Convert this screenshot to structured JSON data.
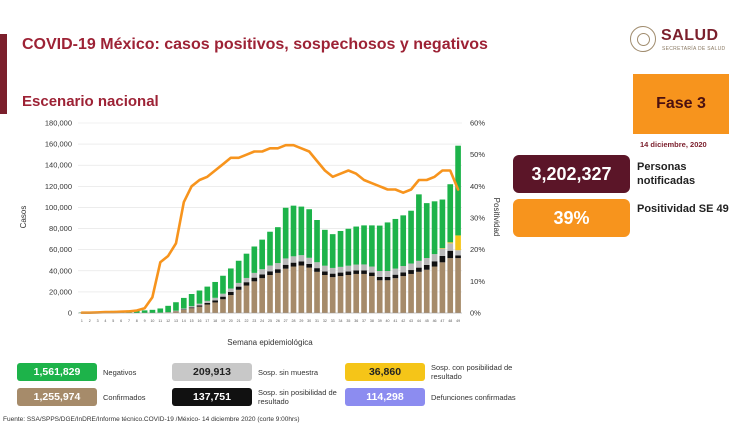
{
  "header": {
    "title": "COVID-19 México: casos positivos, sospechosos y negativos",
    "subtitle": "Escenario nacional",
    "logo_text": "SALUD",
    "logo_sub": "SECRETARÍA DE SALUD"
  },
  "right_panel": {
    "phase": "Fase 3",
    "date": "14 diciembre, 2020",
    "notified_value": "3,202,327",
    "notified_label": "Personas notificadas",
    "positivity_value": "39%",
    "positivity_label": "Positividad SE 49"
  },
  "legend": {
    "negativos_value": "1,561,829",
    "negativos_label": "Negativos",
    "confirmados_value": "1,255,974",
    "confirmados_label": "Confirmados",
    "sosp_sin_muestra_value": "209,913",
    "sosp_sin_muestra_label": "Sosp. sin muestra",
    "sosp_sin_posibilidad_value": "137,751",
    "sosp_sin_posibilidad_label": "Sosp. sin posibilidad de resultado",
    "sosp_con_posibilidad_value": "36,860",
    "sosp_con_posibilidad_label": "Sosp. con posibilidad de resultado",
    "defunciones_value": "114,298",
    "defunciones_label": "Defunciones confirmadas"
  },
  "source": "Fuente: SSA/SPPS/DGE/InDRE/Informe técnico.COVID-19 /México- 14 diciembre 2020 (corte 9:00hrs)",
  "colors": {
    "confirmados": "#a68b6a",
    "sosp_sin_posibilidad": "#111111",
    "sosp_sin_muestra": "#b9b9b9",
    "negativos": "#1db34a",
    "sosp_con_posibilidad": "#f5c518",
    "positividad": "#f7941d",
    "notified_box": "#5b1528",
    "positivity_box": "#f7941d"
  },
  "chart_data": {
    "type": "bar",
    "stacked": true,
    "xlabel": "Semana epidemiológica",
    "ylabel": "Casos",
    "y2label": "Positividad",
    "ylim": [
      0,
      180000
    ],
    "y2lim": [
      0,
      60
    ],
    "yticks": [
      "0",
      "20,000",
      "40,000",
      "60,000",
      "80,000",
      "100,000",
      "120,000",
      "140,000",
      "160,000",
      "180,000"
    ],
    "y2ticks": [
      "0%",
      "10%",
      "20%",
      "30%",
      "40%",
      "50%",
      "60%"
    ],
    "categories": [
      "1",
      "2",
      "3",
      "4",
      "5",
      "6",
      "7",
      "8",
      "9",
      "10",
      "11",
      "12",
      "13",
      "14",
      "15",
      "16",
      "17",
      "18",
      "19",
      "20",
      "21",
      "22",
      "23",
      "24",
      "25",
      "26",
      "27",
      "28",
      "29",
      "30",
      "31",
      "32",
      "33",
      "34",
      "35",
      "36",
      "37",
      "38",
      "39",
      "40",
      "41",
      "42",
      "43",
      "44",
      "45",
      "46",
      "47",
      "48",
      "49"
    ],
    "series": [
      {
        "name": "Confirmados",
        "values": [
          0,
          0,
          0,
          0,
          0,
          0,
          0,
          0,
          0,
          0,
          200,
          600,
          1500,
          3000,
          4500,
          6000,
          8000,
          10000,
          13000,
          17000,
          22000,
          26000,
          30000,
          33000,
          36000,
          38000,
          42000,
          44000,
          45000,
          43000,
          39000,
          36000,
          34000,
          35000,
          36000,
          37000,
          37000,
          35000,
          31000,
          31000,
          33000,
          35000,
          37000,
          39000,
          41000,
          44000,
          48000,
          52000,
          52000
        ]
      },
      {
        "name": "Sosp. sin posibilidad de resultado",
        "values": [
          0,
          0,
          0,
          0,
          0,
          0,
          0,
          0,
          0,
          0,
          0,
          0,
          200,
          500,
          800,
          1200,
          1500,
          2000,
          2500,
          3000,
          3000,
          3200,
          3500,
          3500,
          3500,
          3500,
          3700,
          3700,
          3800,
          3500,
          3500,
          3300,
          3300,
          3300,
          3300,
          3300,
          3300,
          3300,
          3200,
          3200,
          3300,
          3500,
          3700,
          4000,
          4500,
          5000,
          6000,
          7000,
          2500
        ]
      },
      {
        "name": "Sosp. sin muestra",
        "values": [
          0,
          0,
          0,
          0,
          0,
          0,
          0,
          0,
          0,
          0,
          100,
          200,
          500,
          800,
          1200,
          1600,
          2000,
          2400,
          2800,
          3200,
          3500,
          4000,
          4500,
          5000,
          5500,
          5800,
          6000,
          6000,
          6000,
          5800,
          5600,
          5500,
          5400,
          5400,
          5500,
          5600,
          5700,
          5700,
          5600,
          5600,
          5800,
          6000,
          6200,
          6400,
          6600,
          6800,
          7000,
          7000,
          5000
        ]
      },
      {
        "name": "Sosp. con posibilidad de resultado",
        "values": [
          0,
          0,
          0,
          0,
          0,
          0,
          0,
          0,
          0,
          0,
          0,
          0,
          0,
          0,
          0,
          0,
          0,
          0,
          0,
          0,
          0,
          0,
          0,
          0,
          0,
          0,
          0,
          0,
          0,
          0,
          0,
          0,
          0,
          0,
          0,
          0,
          0,
          0,
          0,
          0,
          0,
          0,
          0,
          0,
          0,
          0,
          500,
          1000,
          14000
        ]
      },
      {
        "name": "Negativos",
        "values": [
          500,
          800,
          1000,
          1500,
          2000,
          2200,
          2400,
          2500,
          2500,
          3000,
          4000,
          6000,
          8000,
          10000,
          11500,
          12500,
          13500,
          15000,
          17000,
          19000,
          21000,
          23000,
          25000,
          28000,
          32000,
          34000,
          48000,
          48000,
          46000,
          46000,
          40000,
          34000,
          32000,
          34000,
          35000,
          36000,
          37000,
          39000,
          43000,
          46000,
          47000,
          48000,
          50000,
          63000,
          52000,
          50000,
          46000,
          55000,
          85000
        ]
      }
    ],
    "line": {
      "name": "Positividad",
      "values": [
        0.1,
        0.1,
        0.2,
        0.3,
        0.3,
        0.4,
        0.5,
        0.8,
        1.5,
        5,
        16,
        18,
        22,
        35,
        40,
        42,
        43,
        45,
        47,
        49,
        49,
        50,
        51,
        51,
        52,
        52,
        53,
        53,
        52,
        51,
        48,
        45,
        43,
        44,
        45,
        44,
        42,
        41,
        40,
        39,
        39,
        38,
        39,
        42,
        42,
        43,
        45,
        45,
        39
      ]
    }
  }
}
